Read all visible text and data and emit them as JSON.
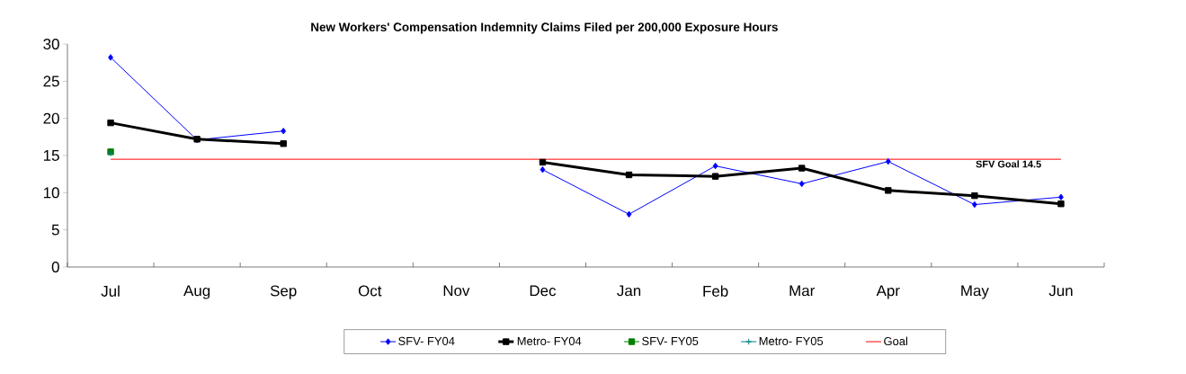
{
  "chart_data": {
    "type": "line",
    "title": "New Workers' Compensation Indemnity Claims Filed per 200,000 Exposure Hours",
    "categories": [
      "Jul",
      "Aug",
      "Sep",
      "Oct",
      "Nov",
      "Dec",
      "Jan",
      "Feb",
      "Mar",
      "Apr",
      "May",
      "Jun"
    ],
    "series": [
      {
        "name": "SFV- FY04",
        "color": "#0000ff",
        "marker": "diamond",
        "values": [
          28.2,
          17.1,
          18.3,
          null,
          null,
          13.1,
          7.1,
          13.6,
          11.2,
          14.2,
          8.4,
          9.4
        ]
      },
      {
        "name": "Metro- FY04",
        "color": "#000000",
        "marker": "square",
        "values": [
          19.4,
          17.2,
          16.6,
          null,
          null,
          14.1,
          12.4,
          12.2,
          13.3,
          10.3,
          9.6,
          8.5
        ]
      },
      {
        "name": "SFV- FY05",
        "color": "#008000",
        "marker": "square",
        "values": [
          15.5,
          null,
          null,
          null,
          null,
          null,
          null,
          null,
          null,
          null,
          null,
          null
        ]
      },
      {
        "name": "Metro- FY05",
        "color": "#008080",
        "marker": "cross",
        "values": [
          15.3,
          null,
          null,
          null,
          null,
          null,
          null,
          null,
          null,
          null,
          null,
          null
        ]
      },
      {
        "name": "Goal",
        "color": "#ff0000",
        "marker": "none",
        "values": [
          14.5,
          14.5,
          14.5,
          14.5,
          14.5,
          14.5,
          14.5,
          14.5,
          14.5,
          14.5,
          14.5,
          14.5
        ]
      }
    ],
    "annotations": [
      {
        "text": "SFV Goal 14.5",
        "x": "May",
        "y": 14.5
      }
    ],
    "ylim": [
      0,
      30
    ],
    "yticks": [
      0,
      5,
      10,
      15,
      20,
      25,
      30
    ],
    "grid": false,
    "legend": "bottom"
  }
}
